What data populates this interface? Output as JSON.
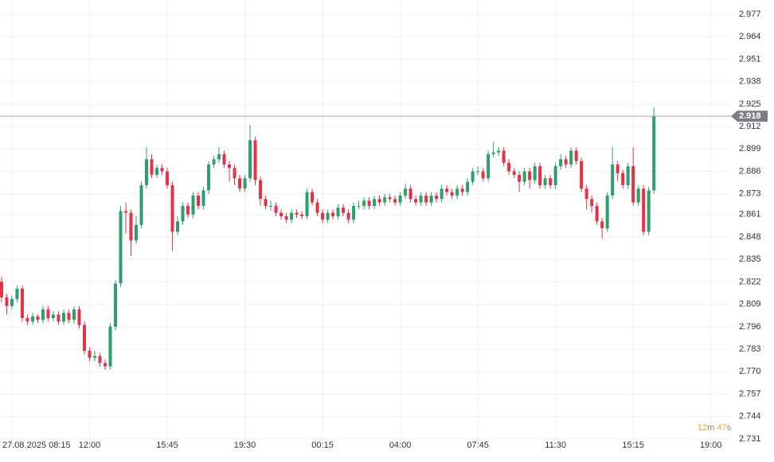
{
  "chart_data": {
    "type": "candlestick",
    "xlim": [
      -0.3,
      141.2
    ],
    "ylim": [
      2.7259,
      2.9853
    ],
    "xticks": [
      {
        "value": 2,
        "label": "27.08.2025 08:15"
      },
      {
        "value": 17,
        "label": "12:00"
      },
      {
        "value": 32,
        "label": "15:45"
      },
      {
        "value": 47,
        "label": "19:30"
      },
      {
        "value": 62,
        "label": "00:15"
      },
      {
        "value": 77,
        "label": "04:00"
      },
      {
        "value": 92,
        "label": "07:45"
      },
      {
        "value": 107,
        "label": "11:30"
      },
      {
        "value": 122,
        "label": "15:15"
      },
      {
        "value": 137,
        "label": "19:00"
      }
    ],
    "yticks": [
      2.977,
      2.964,
      2.951,
      2.938,
      2.925,
      2.912,
      2.899,
      2.886,
      2.873,
      2.861,
      2.848,
      2.835,
      2.822,
      2.809,
      2.796,
      2.783,
      {
        "value": 2.77,
        "label": "2.770"
      },
      2.757,
      2.744,
      2.731
    ],
    "grid": true,
    "up_color": "#2f9e6f",
    "down_color": "#e23446",
    "last_price": 2.918,
    "countdown": [
      "12",
      "m",
      "47",
      "s"
    ],
    "series": {
      "open": [
        2.822,
        2.813,
        2.808,
        2.812,
        2.818,
        2.801,
        2.799,
        2.802,
        2.8,
        2.806,
        2.801,
        2.803,
        2.799,
        2.804,
        2.8,
        2.806,
        2.797,
        2.782,
        2.778,
        2.779,
        2.775,
        2.773,
        2.796,
        2.821,
        2.863,
        2.862,
        2.846,
        2.855,
        2.878,
        2.893,
        2.884,
        2.888,
        2.886,
        2.878,
        2.851,
        2.857,
        2.866,
        2.861,
        2.872,
        2.866,
        2.875,
        2.89,
        2.893,
        2.896,
        2.89,
        2.888,
        2.882,
        2.876,
        2.882,
        2.904,
        2.881,
        2.87,
        2.866,
        2.866,
        2.862,
        2.86,
        2.858,
        2.862,
        2.861,
        2.86,
        2.874,
        2.868,
        2.862,
        2.858,
        2.862,
        2.86,
        2.865,
        2.862,
        2.858,
        2.866,
        2.866,
        2.869,
        2.866,
        2.87,
        2.868,
        2.871,
        2.87,
        2.868,
        2.872,
        2.876,
        2.87,
        2.868,
        2.872,
        2.868,
        2.872,
        2.87,
        2.876,
        2.874,
        2.872,
        2.876,
        2.874,
        2.88,
        2.886,
        2.886,
        2.882,
        2.896,
        2.897,
        2.898,
        2.891,
        2.886,
        2.884,
        2.88,
        2.886,
        2.881,
        2.889,
        2.878,
        2.882,
        2.878,
        2.889,
        2.893,
        2.89,
        2.898,
        2.892,
        2.876,
        2.87,
        2.866,
        2.857,
        2.853,
        2.872,
        2.89,
        2.885,
        2.878,
        2.889,
        2.868,
        2.876,
        2.851,
        2.875
      ],
      "high": [
        2.825,
        2.815,
        2.814,
        2.82,
        2.82,
        2.803,
        2.804,
        2.803,
        2.808,
        2.808,
        2.805,
        2.805,
        2.806,
        2.806,
        2.808,
        2.808,
        2.799,
        2.784,
        2.782,
        2.781,
        2.777,
        2.798,
        2.823,
        2.866,
        2.868,
        2.864,
        2.86,
        2.88,
        2.9,
        2.896,
        2.89,
        2.89,
        2.888,
        2.88,
        2.86,
        2.868,
        2.868,
        2.874,
        2.874,
        2.877,
        2.892,
        2.895,
        2.9,
        2.898,
        2.892,
        2.89,
        2.884,
        2.884,
        2.913,
        2.906,
        2.883,
        2.872,
        2.869,
        2.868,
        2.864,
        2.862,
        2.864,
        2.864,
        2.863,
        2.876,
        2.876,
        2.87,
        2.864,
        2.864,
        2.864,
        2.867,
        2.867,
        2.864,
        2.868,
        2.869,
        2.871,
        2.871,
        2.872,
        2.872,
        2.873,
        2.873,
        2.872,
        2.874,
        2.879,
        2.878,
        2.872,
        2.874,
        2.874,
        2.874,
        2.874,
        2.878,
        2.878,
        2.876,
        2.878,
        2.878,
        2.882,
        2.888,
        2.889,
        2.888,
        2.898,
        2.903,
        2.9,
        2.9,
        2.893,
        2.888,
        2.886,
        2.888,
        2.888,
        2.891,
        2.891,
        2.884,
        2.884,
        2.891,
        2.896,
        2.895,
        2.9,
        2.9,
        2.894,
        2.878,
        2.872,
        2.868,
        2.859,
        2.874,
        2.9,
        2.892,
        2.887,
        2.891,
        2.9,
        2.878,
        2.878,
        2.877,
        2.923
      ],
      "low": [
        2.81,
        2.803,
        2.806,
        2.81,
        2.799,
        2.797,
        2.797,
        2.798,
        2.798,
        2.799,
        2.799,
        2.797,
        2.797,
        2.798,
        2.798,
        2.795,
        2.78,
        2.776,
        2.776,
        2.773,
        2.771,
        2.771,
        2.794,
        2.819,
        2.85,
        2.837,
        2.844,
        2.853,
        2.876,
        2.882,
        2.882,
        2.884,
        2.876,
        2.84,
        2.849,
        2.855,
        2.859,
        2.859,
        2.864,
        2.864,
        2.873,
        2.888,
        2.891,
        2.888,
        2.88,
        2.878,
        2.874,
        2.874,
        2.88,
        2.878,
        2.866,
        2.864,
        2.863,
        2.86,
        2.858,
        2.856,
        2.856,
        2.859,
        2.858,
        2.858,
        2.866,
        2.86,
        2.856,
        2.856,
        2.858,
        2.858,
        2.86,
        2.856,
        2.856,
        2.864,
        2.864,
        2.864,
        2.864,
        2.866,
        2.866,
        2.868,
        2.866,
        2.866,
        2.87,
        2.868,
        2.866,
        2.866,
        2.866,
        2.866,
        2.868,
        2.868,
        2.872,
        2.87,
        2.87,
        2.872,
        2.872,
        2.878,
        2.884,
        2.88,
        2.88,
        2.894,
        2.895,
        2.889,
        2.884,
        2.882,
        2.874,
        2.878,
        2.876,
        2.879,
        2.876,
        2.876,
        2.876,
        2.876,
        2.887,
        2.888,
        2.888,
        2.89,
        2.874,
        2.864,
        2.862,
        2.855,
        2.847,
        2.851,
        2.87,
        2.88,
        2.876,
        2.876,
        2.866,
        2.866,
        2.849,
        2.849,
        2.873
      ],
      "close": [
        2.813,
        2.808,
        2.812,
        2.818,
        2.801,
        2.799,
        2.802,
        2.8,
        2.806,
        2.801,
        2.803,
        2.799,
        2.804,
        2.8,
        2.806,
        2.797,
        2.782,
        2.778,
        2.779,
        2.775,
        2.773,
        2.796,
        2.821,
        2.863,
        2.862,
        2.846,
        2.855,
        2.878,
        2.893,
        2.884,
        2.888,
        2.886,
        2.878,
        2.851,
        2.857,
        2.866,
        2.861,
        2.872,
        2.866,
        2.875,
        2.89,
        2.893,
        2.896,
        2.89,
        2.888,
        2.882,
        2.876,
        2.882,
        2.904,
        2.881,
        2.87,
        2.866,
        2.866,
        2.862,
        2.86,
        2.858,
        2.862,
        2.861,
        2.86,
        2.874,
        2.868,
        2.862,
        2.858,
        2.862,
        2.86,
        2.865,
        2.862,
        2.858,
        2.866,
        2.866,
        2.869,
        2.866,
        2.87,
        2.868,
        2.871,
        2.87,
        2.868,
        2.872,
        2.876,
        2.87,
        2.868,
        2.872,
        2.868,
        2.872,
        2.87,
        2.876,
        2.874,
        2.872,
        2.876,
        2.874,
        2.88,
        2.886,
        2.886,
        2.882,
        2.896,
        2.897,
        2.898,
        2.891,
        2.886,
        2.884,
        2.88,
        2.886,
        2.881,
        2.889,
        2.878,
        2.882,
        2.878,
        2.889,
        2.893,
        2.89,
        2.898,
        2.892,
        2.876,
        2.87,
        2.866,
        2.857,
        2.853,
        2.872,
        2.89,
        2.885,
        2.878,
        2.889,
        2.868,
        2.876,
        2.851,
        2.875,
        2.918
      ]
    }
  }
}
